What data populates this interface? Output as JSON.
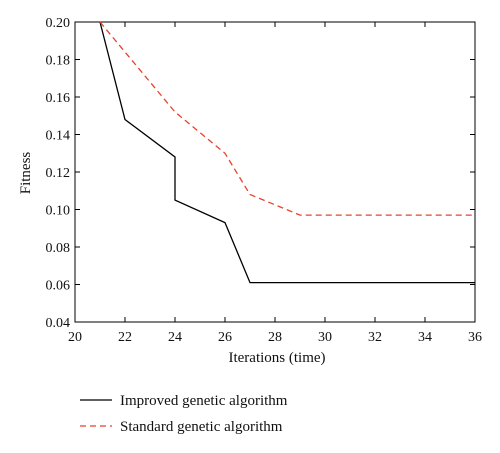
{
  "chart_data": {
    "type": "line",
    "xlabel": "Iterations (time)",
    "ylabel": "Fitness",
    "xlim": [
      20,
      36
    ],
    "ylim": [
      0.04,
      0.2
    ],
    "xticks": [
      20,
      22,
      24,
      26,
      28,
      30,
      32,
      34,
      36
    ],
    "yticks": [
      0.04,
      0.06,
      0.08,
      0.1,
      0.12,
      0.14,
      0.16,
      0.18,
      0.2
    ],
    "ytick_labels": [
      "0.04",
      "0.06",
      "0.08",
      "0.10",
      "0.12",
      "0.14",
      "0.16",
      "0.18",
      "0.20"
    ],
    "grid": false,
    "legend_position": "bottom-left, below plot",
    "series": [
      {
        "name": "Improved genetic algorithm",
        "color": "#000000",
        "dash": "solid",
        "x": [
          21,
          22,
          24,
          24,
          26,
          27,
          36
        ],
        "y": [
          0.2,
          0.148,
          0.128,
          0.105,
          0.093,
          0.061,
          0.061
        ]
      },
      {
        "name": "Standard genetic algorithm",
        "color": "#e8412c",
        "dash": "dashed",
        "x": [
          21,
          24,
          26,
          27,
          29,
          36
        ],
        "y": [
          0.2,
          0.152,
          0.13,
          0.108,
          0.097,
          0.097
        ]
      }
    ]
  }
}
